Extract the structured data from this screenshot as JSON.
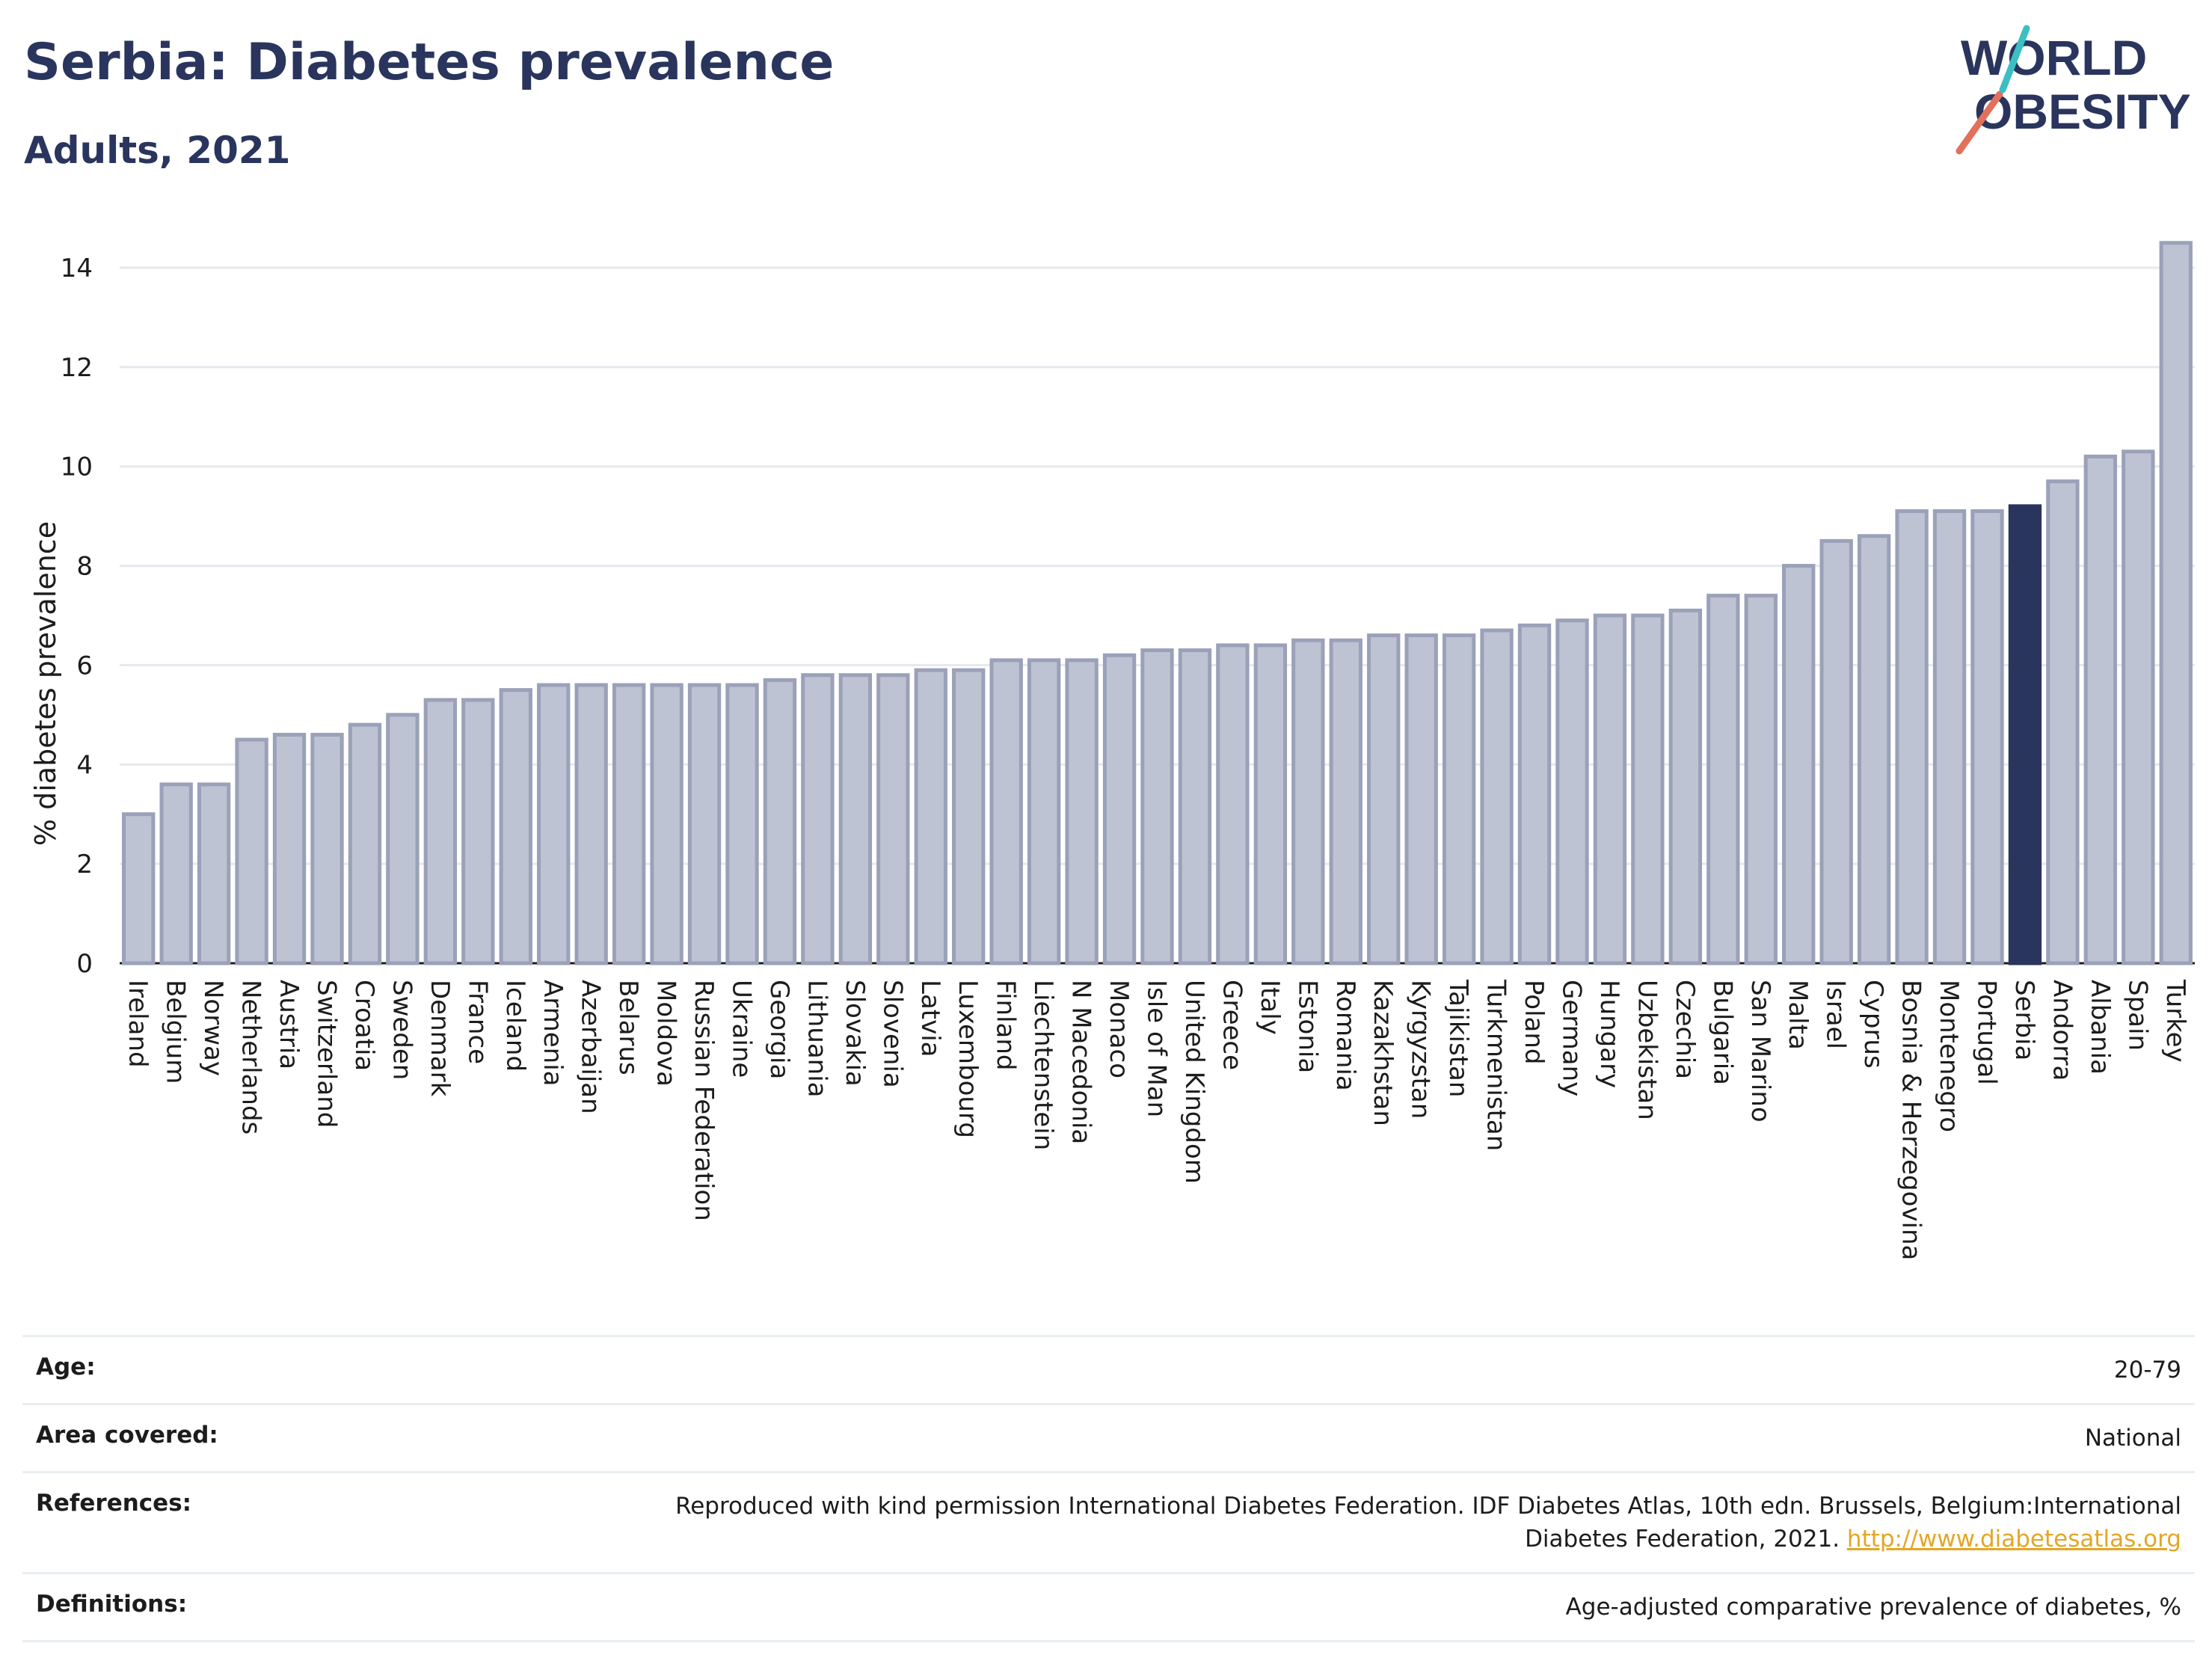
{
  "header": {
    "title": "Serbia: Diabetes prevalence",
    "subtitle": "Adults, 2021"
  },
  "logo": {
    "line1": "WORLD",
    "line2": "OBESITY",
    "text_color": "#2a355e",
    "accent_colors": [
      "#e2715b",
      "#3bbfc2"
    ]
  },
  "colors": {
    "bar": "#bec3d3",
    "bar_stroke": "#9aa1b8",
    "highlight": "#2a355e",
    "grid": "#e6e8ee"
  },
  "chart_data": {
    "type": "bar",
    "ylabel": "% diabetes prevalence",
    "xlabel": "",
    "ylim": [
      0,
      15
    ],
    "yticks": [
      0,
      2,
      4,
      6,
      8,
      10,
      12,
      14
    ],
    "grid": true,
    "highlight": "Serbia",
    "categories": [
      "Ireland",
      "Belgium",
      "Norway",
      "Netherlands",
      "Austria",
      "Switzerland",
      "Croatia",
      "Sweden",
      "Denmark",
      "France",
      "Iceland",
      "Armenia",
      "Azerbaijan",
      "Belarus",
      "Moldova",
      "Russian Federation",
      "Ukraine",
      "Georgia",
      "Lithuania",
      "Slovakia",
      "Slovenia",
      "Latvia",
      "Luxembourg",
      "Finland",
      "Liechtenstein",
      "N Macedonia",
      "Monaco",
      "Isle of Man",
      "United Kingdom",
      "Greece",
      "Italy",
      "Estonia",
      "Romania",
      "Kazakhstan",
      "Kyrgyzstan",
      "Tajikistan",
      "Turkmenistan",
      "Poland",
      "Germany",
      "Hungary",
      "Uzbekistan",
      "Czechia",
      "Bulgaria",
      "San Marino",
      "Malta",
      "Israel",
      "Cyprus",
      "Bosnia & Herzegovina",
      "Montenegro",
      "Portugal",
      "Serbia",
      "Andorra",
      "Albania",
      "Spain",
      "Turkey"
    ],
    "values": [
      3.0,
      3.6,
      3.6,
      4.5,
      4.6,
      4.6,
      4.8,
      5.0,
      5.3,
      5.3,
      5.5,
      5.6,
      5.6,
      5.6,
      5.6,
      5.6,
      5.6,
      5.7,
      5.8,
      5.8,
      5.8,
      5.9,
      5.9,
      6.1,
      6.1,
      6.1,
      6.2,
      6.3,
      6.3,
      6.4,
      6.4,
      6.5,
      6.5,
      6.6,
      6.6,
      6.6,
      6.7,
      6.8,
      6.9,
      7.0,
      7.0,
      7.1,
      7.4,
      7.4,
      8.0,
      8.5,
      8.6,
      9.1,
      9.1,
      9.1,
      9.2,
      9.7,
      10.2,
      10.3,
      14.5
    ]
  },
  "info_table": [
    {
      "label": "Age:",
      "value": "20-79"
    },
    {
      "label": "Area covered:",
      "value": "National"
    },
    {
      "label": "References:",
      "value": "Reproduced with kind permission International Diabetes Federation.  IDF Diabetes Atlas, 10th edn. Brussels, Belgium:International Diabetes Federation, 2021.",
      "link": "http://www.diabetesatlas.org"
    },
    {
      "label": "Definitions:",
      "value": "Age-adjusted comparative prevalence of diabetes, %"
    }
  ]
}
